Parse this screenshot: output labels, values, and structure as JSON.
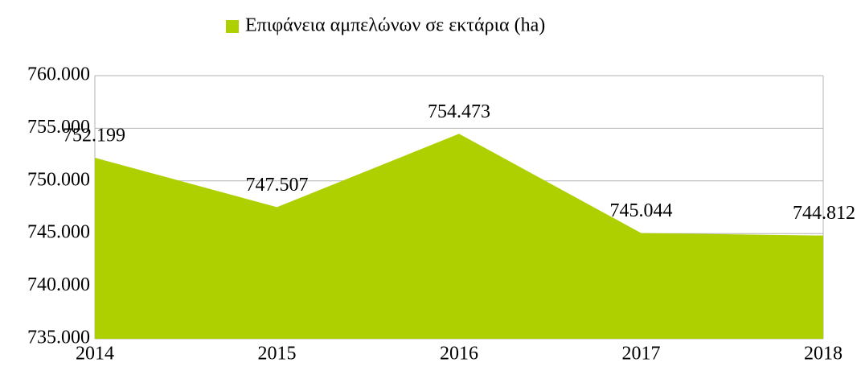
{
  "chart_data": {
    "type": "area",
    "categories": [
      "2014",
      "2015",
      "2016",
      "2017",
      "2018"
    ],
    "series": [
      {
        "name": "Επιφάνεια αμπελώνων σε εκτάρια (ha)",
        "color": "#aecf00",
        "values": [
          752199,
          747507,
          754473,
          745044,
          744812
        ],
        "value_labels": [
          "752.199",
          "747.507",
          "754.473",
          "745.044",
          "744.812"
        ]
      }
    ],
    "ylim": [
      735000,
      760000
    ],
    "yticks": [
      {
        "value": 735000,
        "label": "735.000"
      },
      {
        "value": 740000,
        "label": "740.000"
      },
      {
        "value": 745000,
        "label": "745.000"
      },
      {
        "value": 750000,
        "label": "750.000"
      },
      {
        "value": 755000,
        "label": "755.000"
      },
      {
        "value": 760000,
        "label": "760.000"
      }
    ],
    "grid": true,
    "legend": "top"
  }
}
